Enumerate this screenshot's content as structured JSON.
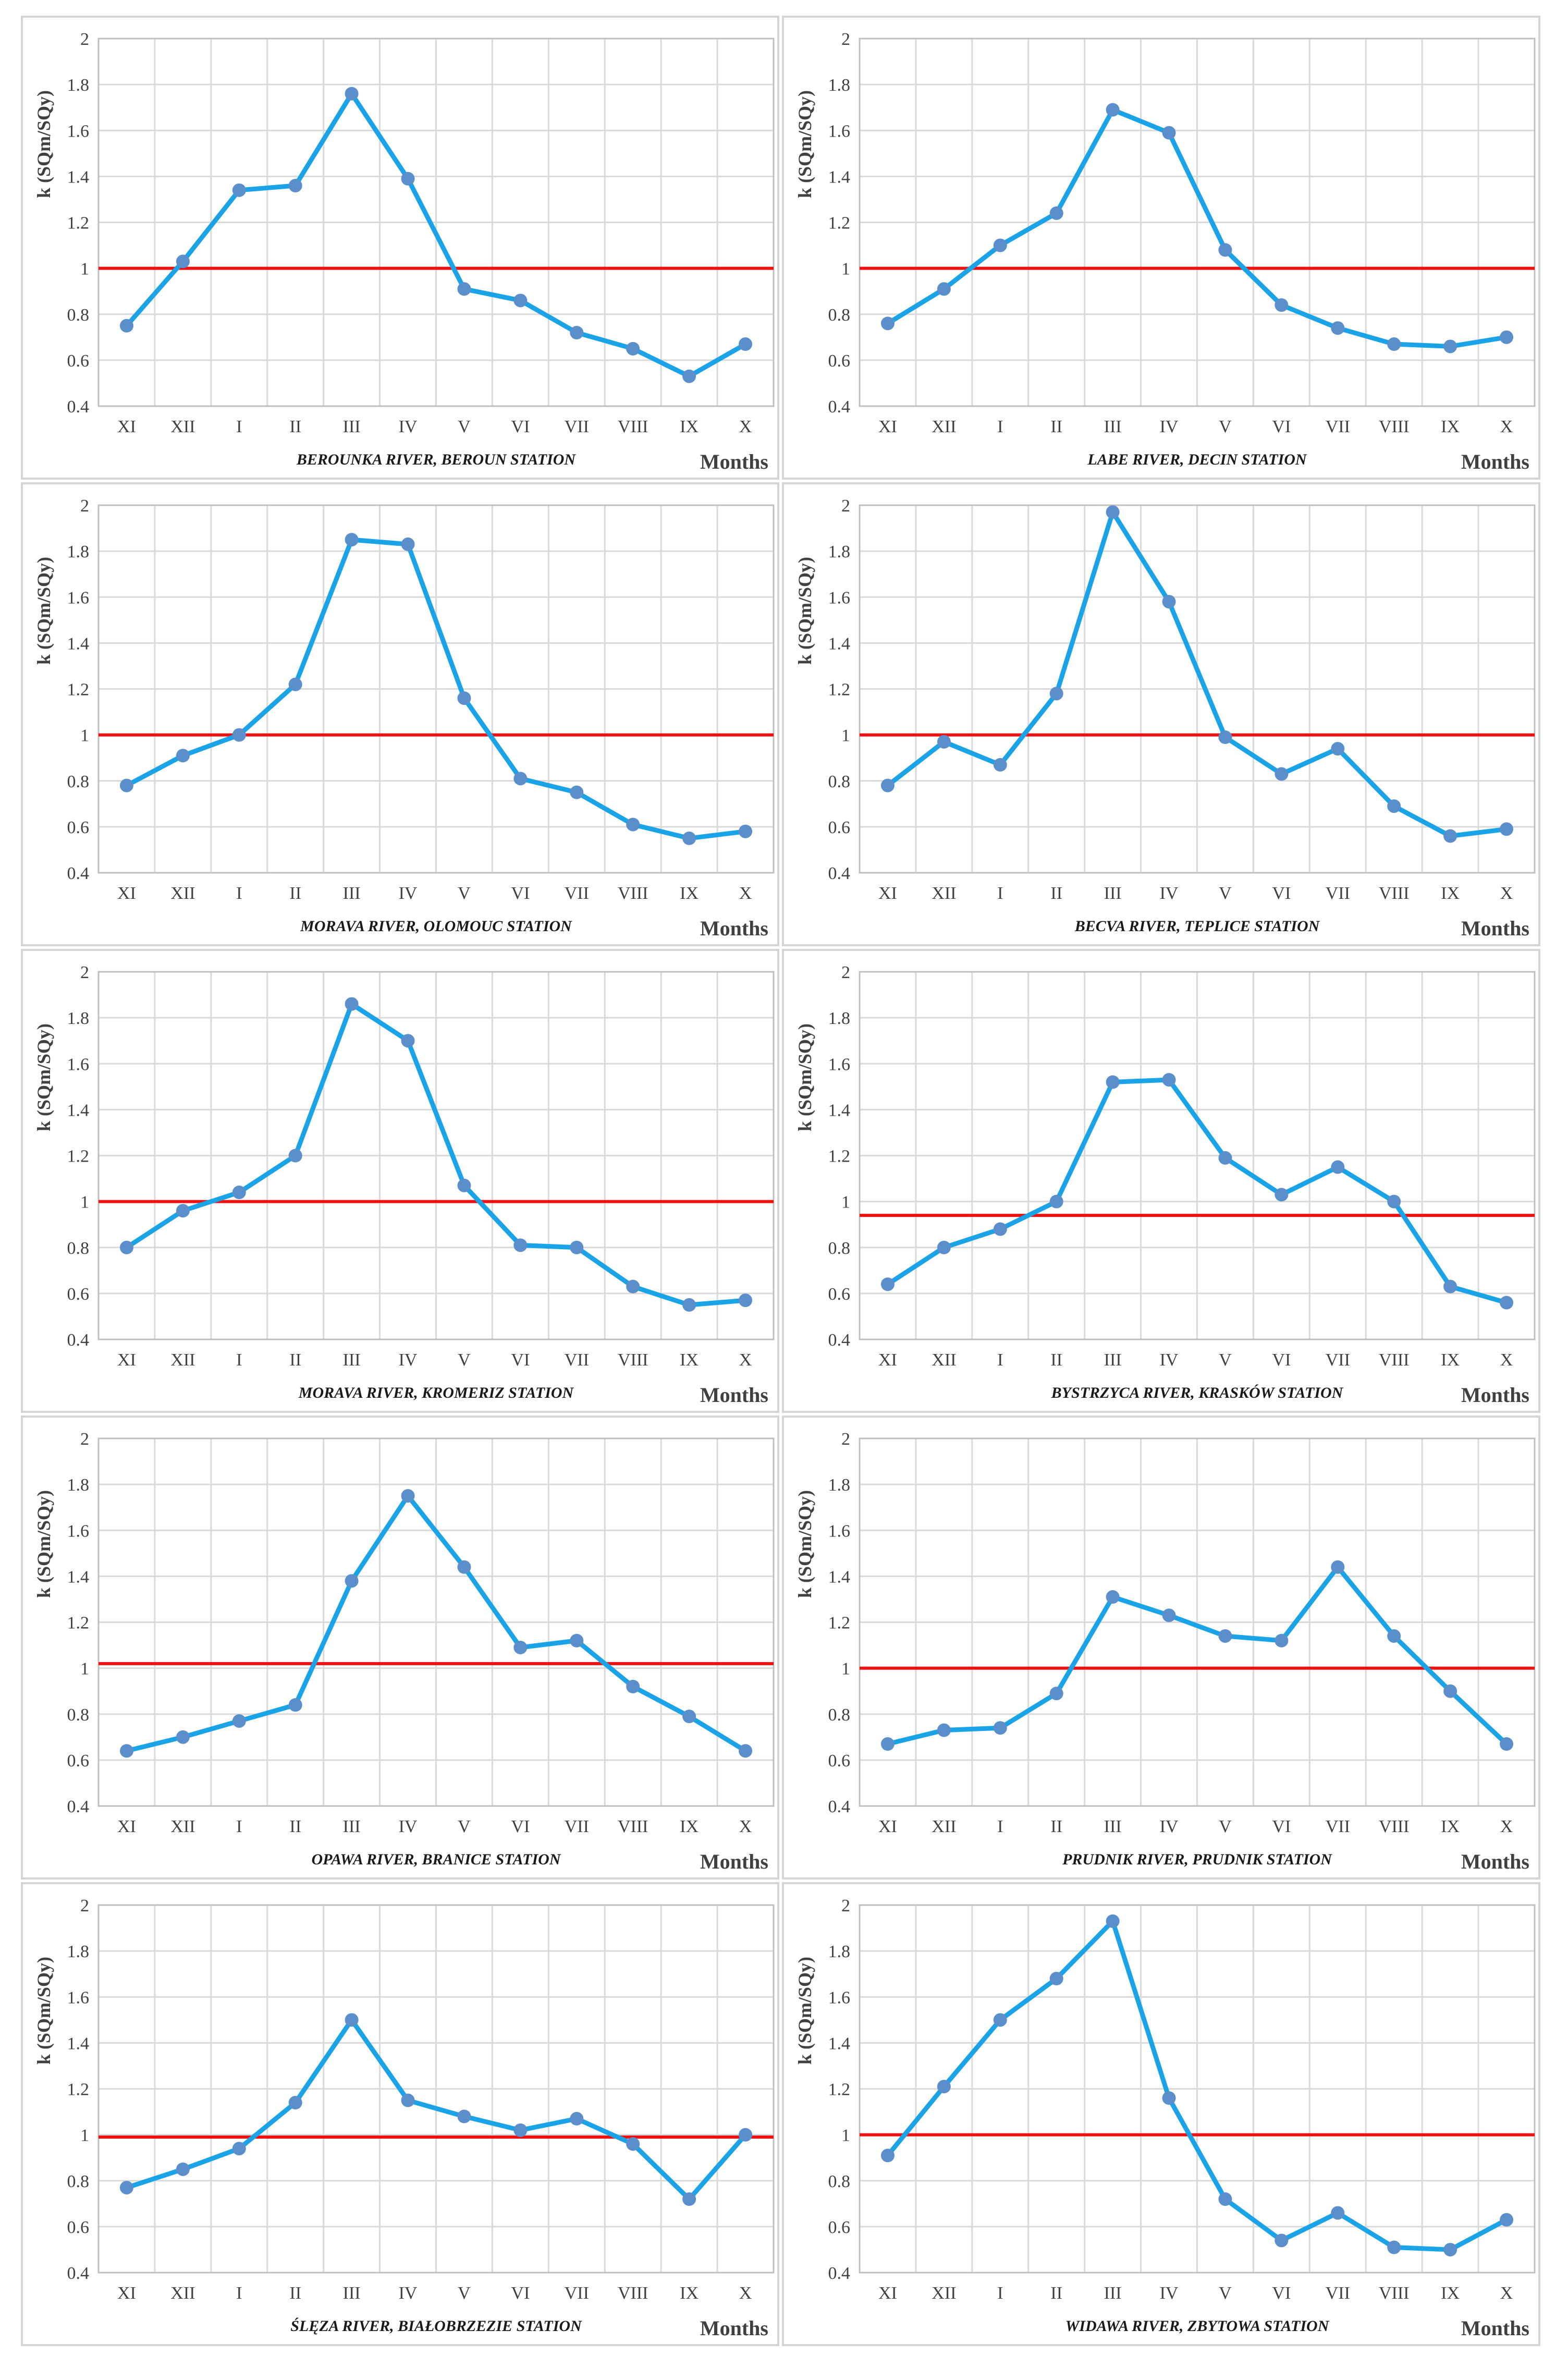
{
  "ylabel": "k (SQm/SQy)",
  "xlabel": "Months",
  "colors": {
    "series": "#1aa3e6",
    "marker": "#5b8fcc",
    "reference": "#ee1111",
    "grid": "#d9d9d9",
    "axis": "#bfbfbf",
    "tick_text": "#404040"
  },
  "months": [
    "XI",
    "XII",
    "I",
    "II",
    "III",
    "IV",
    "V",
    "VI",
    "VII",
    "VIII",
    "IX",
    "X"
  ],
  "chart_data": [
    {
      "type": "line",
      "title": "BEROUNKA RIVER, BEROUN STATION",
      "categories": [
        "XI",
        "XII",
        "I",
        "II",
        "III",
        "IV",
        "V",
        "VI",
        "VII",
        "VIII",
        "IX",
        "X"
      ],
      "values": [
        0.75,
        1.03,
        1.34,
        1.36,
        1.76,
        1.39,
        0.91,
        0.86,
        0.72,
        0.65,
        0.53,
        0.67
      ],
      "reference": 1.0,
      "ylim": [
        0.4,
        2.0
      ],
      "yticks": [
        "0.4",
        "0.6",
        "0.8",
        "1",
        "1.2",
        "1.4",
        "1.6",
        "1.8",
        "2"
      ],
      "xlabel": "Months",
      "ylabel": "k (SQm/SQy)"
    },
    {
      "type": "line",
      "title": "LABE RIVER, DECIN STATION",
      "categories": [
        "XI",
        "XII",
        "I",
        "II",
        "III",
        "IV",
        "V",
        "VI",
        "VII",
        "VIII",
        "IX",
        "X"
      ],
      "values": [
        0.76,
        0.91,
        1.1,
        1.24,
        1.69,
        1.59,
        1.08,
        0.84,
        0.74,
        0.67,
        0.66,
        0.7
      ],
      "reference": 1.0,
      "ylim": [
        0.4,
        2.0
      ],
      "yticks": [
        "0.4",
        "0.6",
        "0.8",
        "1",
        "1.2",
        "1.4",
        "1.6",
        "1.8",
        "2"
      ],
      "xlabel": "Months",
      "ylabel": "k (SQm/SQy)"
    },
    {
      "type": "line",
      "title": "MORAVA RIVER, OLOMOUC STATION",
      "categories": [
        "XI",
        "XII",
        "I",
        "II",
        "III",
        "IV",
        "V",
        "VI",
        "VII",
        "VIII",
        "IX",
        "X"
      ],
      "values": [
        0.78,
        0.91,
        1.0,
        1.22,
        1.85,
        1.83,
        1.16,
        0.81,
        0.75,
        0.61,
        0.55,
        0.58
      ],
      "reference": 1.0,
      "ylim": [
        0.4,
        2.0
      ],
      "yticks": [
        "0.4",
        "0.6",
        "0.8",
        "1",
        "1.2",
        "1.4",
        "1.6",
        "1.8",
        "2"
      ],
      "xlabel": "Months",
      "ylabel": "k (SQm/SQy)"
    },
    {
      "type": "line",
      "title": "BECVA RIVER, TEPLICE STATION",
      "categories": [
        "XI",
        "XII",
        "I",
        "II",
        "III",
        "IV",
        "V",
        "VI",
        "VII",
        "VIII",
        "IX",
        "X"
      ],
      "values": [
        0.78,
        0.97,
        0.87,
        1.18,
        1.97,
        1.58,
        0.99,
        0.83,
        0.94,
        0.69,
        0.56,
        0.59
      ],
      "reference": 1.0,
      "ylim": [
        0.4,
        2.0
      ],
      "yticks": [
        "0.4",
        "0.6",
        "0.8",
        "1",
        "1.2",
        "1.4",
        "1.6",
        "1.8",
        "2"
      ],
      "xlabel": "Months",
      "ylabel": "k (SQm/SQy)"
    },
    {
      "type": "line",
      "title": "MORAVA RIVER, KROMERIZ STATION",
      "categories": [
        "XI",
        "XII",
        "I",
        "II",
        "III",
        "IV",
        "V",
        "VI",
        "VII",
        "VIII",
        "IX",
        "X"
      ],
      "values": [
        0.8,
        0.96,
        1.04,
        1.2,
        1.86,
        1.7,
        1.07,
        0.81,
        0.8,
        0.63,
        0.55,
        0.57
      ],
      "reference": 1.0,
      "ylim": [
        0.4,
        2.0
      ],
      "yticks": [
        "0.4",
        "0.6",
        "0.8",
        "1",
        "1.2",
        "1.4",
        "1.6",
        "1.8",
        "2"
      ],
      "xlabel": "Months",
      "ylabel": "k (SQm/SQy)"
    },
    {
      "type": "line",
      "title": "BYSTRZYCA RIVER, KRASKÓW STATION",
      "categories": [
        "XI",
        "XII",
        "I",
        "II",
        "III",
        "IV",
        "V",
        "VI",
        "VII",
        "VIII",
        "IX",
        "X"
      ],
      "values": [
        0.64,
        0.8,
        0.88,
        1.0,
        1.52,
        1.53,
        1.19,
        1.03,
        1.15,
        1.0,
        0.63,
        0.56
      ],
      "reference": 0.94,
      "ylim": [
        0.4,
        2.0
      ],
      "yticks": [
        "0.4",
        "0.6",
        "0.8",
        "1",
        "1.2",
        "1.4",
        "1.6",
        "1.8",
        "2"
      ],
      "xlabel": "Months",
      "ylabel": "k (SQm/SQy)"
    },
    {
      "type": "line",
      "title": "OPAWA RIVER, BRANICE STATION",
      "categories": [
        "XI",
        "XII",
        "I",
        "II",
        "III",
        "IV",
        "V",
        "VI",
        "VII",
        "VIII",
        "IX",
        "X"
      ],
      "values": [
        0.64,
        0.7,
        0.77,
        0.84,
        1.38,
        1.75,
        1.44,
        1.09,
        1.12,
        0.92,
        0.79,
        0.64
      ],
      "reference": 1.02,
      "ylim": [
        0.4,
        2.0
      ],
      "yticks": [
        "0.4",
        "0.6",
        "0.8",
        "1",
        "1.2",
        "1.4",
        "1.6",
        "1.8",
        "2"
      ],
      "xlabel": "Months",
      "ylabel": "k (SQm/SQy)"
    },
    {
      "type": "line",
      "title": "PRUDNIK RIVER, PRUDNIK STATION",
      "categories": [
        "XI",
        "XII",
        "I",
        "II",
        "III",
        "IV",
        "V",
        "VI",
        "VII",
        "VIII",
        "IX",
        "X"
      ],
      "values": [
        0.67,
        0.73,
        0.74,
        0.89,
        1.31,
        1.23,
        1.14,
        1.12,
        1.44,
        1.14,
        0.9,
        0.67
      ],
      "reference": 1.0,
      "ylim": [
        0.4,
        2.0
      ],
      "yticks": [
        "0.4",
        "0.6",
        "0.8",
        "1",
        "1.2",
        "1.4",
        "1.6",
        "1.8",
        "2"
      ],
      "xlabel": "Months",
      "ylabel": "k (SQm/SQy)"
    },
    {
      "type": "line",
      "title": "ŚLĘZA RIVER, BIAŁOBRZEZIE STATION",
      "categories": [
        "XI",
        "XII",
        "I",
        "II",
        "III",
        "IV",
        "V",
        "VI",
        "VII",
        "VIII",
        "IX",
        "X"
      ],
      "values": [
        0.77,
        0.85,
        0.94,
        1.14,
        1.5,
        1.15,
        1.08,
        1.02,
        1.07,
        0.96,
        0.72,
        1.0
      ],
      "reference": 0.99,
      "ylim": [
        0.4,
        2.0
      ],
      "yticks": [
        "0.4",
        "0.6",
        "0.8",
        "1",
        "1.2",
        "1.4",
        "1.6",
        "1.8",
        "2"
      ],
      "xlabel": "Months",
      "ylabel": "k (SQm/SQy)"
    },
    {
      "type": "line",
      "title": "WIDAWA RIVER, ZBYTOWA STATION",
      "categories": [
        "XI",
        "XII",
        "I",
        "II",
        "III",
        "IV",
        "V",
        "VI",
        "VII",
        "VIII",
        "IX",
        "X"
      ],
      "values": [
        0.91,
        1.21,
        1.5,
        1.68,
        1.93,
        1.16,
        0.72,
        0.54,
        0.66,
        0.51,
        0.5,
        0.63
      ],
      "reference": 1.0,
      "ylim": [
        0.4,
        2.0
      ],
      "yticks": [
        "0.4",
        "0.6",
        "0.8",
        "1",
        "1.2",
        "1.4",
        "1.6",
        "1.8",
        "2"
      ],
      "xlabel": "Months",
      "ylabel": "k (SQm/SQy)"
    }
  ]
}
